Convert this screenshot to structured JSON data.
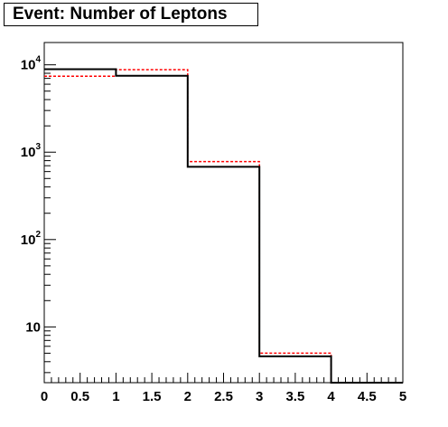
{
  "chart_data": {
    "type": "histogram",
    "title": "Event: Number of Leptons",
    "xlabel": "",
    "ylabel": "",
    "x_scale": "linear",
    "y_scale": "log",
    "xlim": [
      0,
      5
    ],
    "ylim": [
      2.3,
      18000
    ],
    "x_ticks": [
      "0",
      "0.5",
      "1",
      "1.5",
      "2",
      "2.5",
      "3",
      "3.5",
      "4",
      "4.5",
      "5"
    ],
    "y_ticks": [
      {
        "value": 10,
        "base": "10",
        "exp": ""
      },
      {
        "value": 100,
        "base": "10",
        "exp": "2"
      },
      {
        "value": 1000,
        "base": "10",
        "exp": "3"
      },
      {
        "value": 10000,
        "base": "10",
        "exp": "4"
      }
    ],
    "bins": [
      0,
      1,
      2,
      3,
      4,
      5
    ],
    "series": [
      {
        "style": "solid",
        "color": "#000000",
        "values": [
          8900,
          7500,
          680,
          4.6,
          0
        ]
      },
      {
        "style": "dashed",
        "color": "#ff0000",
        "values": [
          7400,
          8800,
          780,
          5.0,
          0
        ]
      }
    ],
    "grid": false,
    "legend": "none"
  }
}
